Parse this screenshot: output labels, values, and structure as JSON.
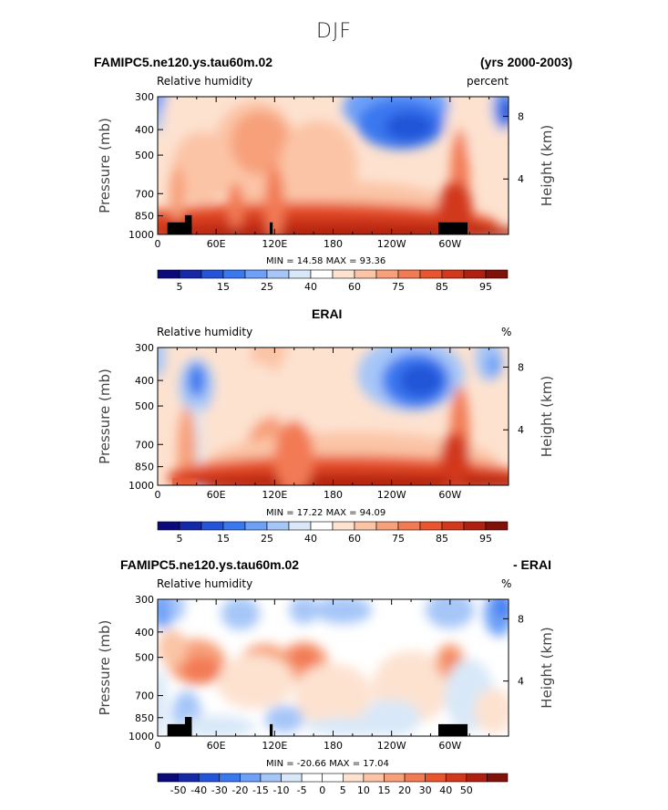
{
  "figure": {
    "title": "DJF"
  },
  "colors": {
    "rh_levels": [
      "#0a0a7a",
      "#1428a8",
      "#2454d8",
      "#3a78f0",
      "#6ea0f8",
      "#a6c6f8",
      "#d8e8f8",
      "#ffffff",
      "#fde2d0",
      "#fbc4a6",
      "#f7a07a",
      "#f27a54",
      "#e8552e",
      "#d2381c",
      "#b02010",
      "#801008"
    ],
    "diff_levels": [
      "#0a0a7a",
      "#1428a8",
      "#2454d8",
      "#3a78f0",
      "#6ea0f8",
      "#a6c6f8",
      "#d8e8f8",
      "#ffffff",
      "#ffffff",
      "#fde2d0",
      "#fbc4a6",
      "#f7a07a",
      "#f27a54",
      "#e8552e",
      "#d2381c",
      "#b02010",
      "#801008"
    ],
    "topography": "#000000"
  },
  "panels": [
    {
      "left_title": "FAMIPC5.ne120.ys.tau60m.02",
      "right_title": "(yrs 2000-2003)",
      "center_title": "",
      "subtitle_left": "Relative humidity",
      "subtitle_right": "percent",
      "stats": "MIN =   14.58   MAX =   93.36",
      "colorbar_labels": [
        "5",
        "15",
        "25",
        "40",
        "60",
        "75",
        "85",
        "95"
      ]
    },
    {
      "left_title": "",
      "right_title": "",
      "center_title": "ERAI",
      "subtitle_left": "Relative humidity",
      "subtitle_right": "%",
      "stats": "MIN =   17.22   MAX =   94.09",
      "colorbar_labels": [
        "5",
        "15",
        "25",
        "40",
        "60",
        "75",
        "85",
        "95"
      ]
    },
    {
      "left_title": "FAMIPC5.ne120.ys.tau60m.02",
      "right_title": "- ERAI",
      "center_title": "",
      "subtitle_left": "Relative humidity",
      "subtitle_right": "%",
      "stats": "MIN = -20.66   MAX =   17.04",
      "colorbar_labels": [
        "-50",
        "-40",
        "-30",
        "-20",
        "-15",
        "-10",
        "-5",
        "0",
        "5",
        "10",
        "15",
        "20",
        "30",
        "40",
        "50"
      ]
    }
  ],
  "axes": {
    "x_ticks": [
      "0",
      "60E",
      "120E",
      "180",
      "120W",
      "60W"
    ],
    "x_values": [
      0,
      60,
      120,
      180,
      240,
      300
    ],
    "xlim": [
      0,
      360
    ],
    "y_ticks": [
      "300",
      "400",
      "500",
      "700",
      "850",
      "1000"
    ],
    "y_values": [
      300,
      400,
      500,
      700,
      850,
      1000
    ],
    "ylim": [
      1000,
      300
    ],
    "y_scale": "log",
    "ylabel": "Pressure (mb)",
    "y2label": "Height (km)",
    "y2_ticks": [
      "8",
      "4"
    ],
    "y2_pressure_values": [
      356,
      616
    ]
  },
  "chart_data": [
    {
      "type": "heatmap",
      "title": "FAMIPC5.ne120.ys.tau60m.02",
      "subtitle": "Relative humidity",
      "units": "percent",
      "x": [
        0,
        60,
        120,
        180,
        240,
        300,
        360
      ],
      "ylim": [
        1000,
        300
      ],
      "min": 14.58,
      "max": 93.36,
      "levels": [
        5,
        10,
        15,
        20,
        25,
        30,
        40,
        50,
        60,
        70,
        75,
        80,
        85,
        90,
        95
      ]
    },
    {
      "type": "heatmap",
      "title": "ERAI",
      "subtitle": "Relative humidity",
      "units": "%",
      "x": [
        0,
        60,
        120,
        180,
        240,
        300,
        360
      ],
      "ylim": [
        1000,
        300
      ],
      "min": 17.22,
      "max": 94.09,
      "levels": [
        5,
        10,
        15,
        20,
        25,
        30,
        40,
        50,
        60,
        70,
        75,
        80,
        85,
        90,
        95
      ]
    },
    {
      "type": "heatmap",
      "title": "FAMIPC5.ne120.ys.tau60m.02 - ERAI",
      "subtitle": "Relative humidity",
      "units": "%",
      "x": [
        0,
        60,
        120,
        180,
        240,
        300,
        360
      ],
      "ylim": [
        1000,
        300
      ],
      "min": -20.66,
      "max": 17.04,
      "levels": [
        -50,
        -40,
        -30,
        -20,
        -15,
        -10,
        -5,
        0,
        5,
        10,
        15,
        20,
        30,
        40,
        50
      ]
    }
  ]
}
